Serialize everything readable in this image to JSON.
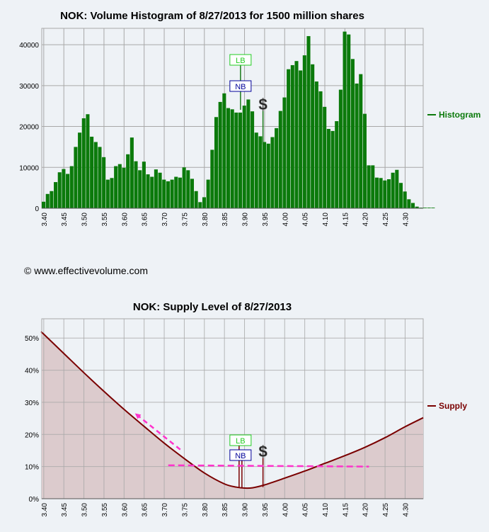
{
  "copyright": "© www.effectivevolume.com",
  "colors": {
    "histogram": "#0b7a0b",
    "supply_line": "#7a0000",
    "supply_fill": "#dccbcd",
    "lb": "#22cc22",
    "nb": "#000099",
    "arrow": "#ff33cc",
    "grid": "#a8a8a8",
    "plot_bg": "#eef2f6"
  },
  "markers": {
    "lb": {
      "label": "LB",
      "price": 3.89
    },
    "nb": {
      "label": "NB",
      "price": 3.89
    },
    "dollar": {
      "label": "$",
      "price": 3.946
    }
  },
  "chart_data": [
    {
      "type": "bar",
      "title": "NOK: Volume Histogram of 8/27/2013 for 1500 million shares",
      "legend": "Histogram",
      "x_ticks": [
        "3.40",
        "3.45",
        "3.50",
        "3.55",
        "3.60",
        "3.65",
        "3.70",
        "3.75",
        "3.80",
        "3.85",
        "3.90",
        "3.95",
        "4.00",
        "4.05",
        "4.10",
        "4.15",
        "4.20",
        "4.25",
        "4.30"
      ],
      "y_ticks": [
        "0",
        "10000",
        "20000",
        "30000",
        "40000"
      ],
      "xlim": [
        3.395,
        4.345
      ],
      "ylim": [
        0,
        44000
      ],
      "bin_start": 3.395,
      "bin_width": 0.01,
      "values": [
        1600,
        3500,
        4200,
        6400,
        8800,
        9600,
        8400,
        10300,
        15000,
        18500,
        22000,
        23000,
        17500,
        16200,
        15000,
        12500,
        7000,
        7400,
        10300,
        10800,
        9900,
        13200,
        17300,
        11500,
        9300,
        11400,
        8300,
        7700,
        9500,
        8700,
        7000,
        6600,
        7000,
        7700,
        7500,
        10000,
        9300,
        7200,
        4200,
        1500,
        2700,
        7000,
        14300,
        22300,
        26000,
        28100,
        24500,
        24200,
        23400,
        23400,
        25100,
        26600,
        23700,
        18500,
        17600,
        16200,
        15800,
        17400,
        19600,
        23800,
        27100,
        34000,
        35000,
        36000,
        33700,
        37400,
        42100,
        35200,
        31000,
        28600,
        24800,
        19400,
        18900,
        21300,
        29000,
        43200,
        42500,
        36500,
        30500,
        32800,
        23100,
        10500,
        10500,
        7500,
        7400,
        6800,
        7100,
        8700,
        9400,
        6200,
        4100,
        2200,
        1300,
        400,
        150,
        150,
        150,
        150
      ]
    },
    {
      "type": "area",
      "title": "NOK: Supply Level of 8/27/2013",
      "legend": "Supply",
      "x_ticks": [
        "3.40",
        "3.45",
        "3.50",
        "3.55",
        "3.60",
        "3.65",
        "3.70",
        "3.75",
        "3.80",
        "3.85",
        "3.90",
        "3.95",
        "4.00",
        "4.05",
        "4.10",
        "4.15",
        "4.20",
        "4.25",
        "4.30"
      ],
      "y_ticks": [
        "0%",
        "10%",
        "20%",
        "30%",
        "40%",
        "50%"
      ],
      "xlim": [
        3.395,
        4.345
      ],
      "ylim": [
        0,
        56
      ],
      "x": [
        3.395,
        3.4,
        3.45,
        3.5,
        3.55,
        3.6,
        3.65,
        3.7,
        3.75,
        3.8,
        3.85,
        3.88,
        3.9,
        3.92,
        3.95,
        4.0,
        4.05,
        4.1,
        4.15,
        4.2,
        4.25,
        4.3,
        4.345
      ],
      "y": [
        51.7,
        51.2,
        45.2,
        39.2,
        33.4,
        27.8,
        22.5,
        17.3,
        12.5,
        8.0,
        4.6,
        3.6,
        3.3,
        3.4,
        4.3,
        6.4,
        8.6,
        11.0,
        13.4,
        16.0,
        19.0,
        22.4,
        25.2
      ],
      "annotations": [
        {
          "type": "dashed-arrow",
          "from": [
            3.74,
            15.3
          ],
          "to": [
            3.63,
            26.3
          ]
        },
        {
          "type": "dashed-line",
          "from": [
            3.71,
            10.4
          ],
          "to": [
            4.21,
            10.0
          ]
        }
      ]
    }
  ]
}
